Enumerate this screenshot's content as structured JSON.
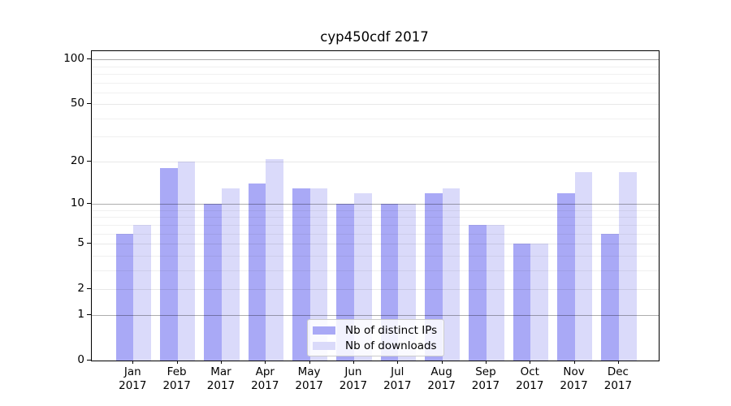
{
  "title": "cyp450cdf 2017",
  "chart_data": {
    "type": "bar",
    "title": "cyp450cdf 2017",
    "categories": [
      "Jan 2017",
      "Feb 2017",
      "Mar 2017",
      "Apr 2017",
      "May 2017",
      "Jun 2017",
      "Jul 2017",
      "Aug 2017",
      "Sep 2017",
      "Oct 2017",
      "Nov 2017",
      "Dec 2017"
    ],
    "x_tick_month_labels": [
      "Jan",
      "Feb",
      "Mar",
      "Apr",
      "May",
      "Jun",
      "Jul",
      "Aug",
      "Sep",
      "Oct",
      "Nov",
      "Dec"
    ],
    "x_tick_year_label": "2017",
    "series": [
      {
        "name": "Nb of distinct IPs",
        "color": "#a9a9f6",
        "values": [
          6,
          18,
          10,
          14,
          13,
          10,
          10,
          12,
          7,
          5,
          12,
          6
        ]
      },
      {
        "name": "Nb of downloads",
        "color": "#dadafa",
        "values": [
          7,
          20,
          13,
          21,
          13,
          12,
          10,
          13,
          7,
          5,
          17,
          17
        ]
      }
    ],
    "yscale": "log1p",
    "ylim": [
      0,
      115
    ],
    "y_major_ticks": [
      0,
      1,
      2,
      5,
      10,
      20,
      50,
      100
    ],
    "y_minor_ticks": [
      3,
      4,
      6,
      7,
      8,
      9,
      30,
      40,
      60,
      70,
      80,
      90
    ],
    "y_decade_gridlines": [
      1,
      10,
      100
    ],
    "grid": true,
    "legend_position": "lower-center",
    "colors": {
      "spine": "#000000",
      "decade_gridline": "#b0b0b0",
      "light_gridline": "#ececec",
      "background": "#ffffff"
    }
  }
}
